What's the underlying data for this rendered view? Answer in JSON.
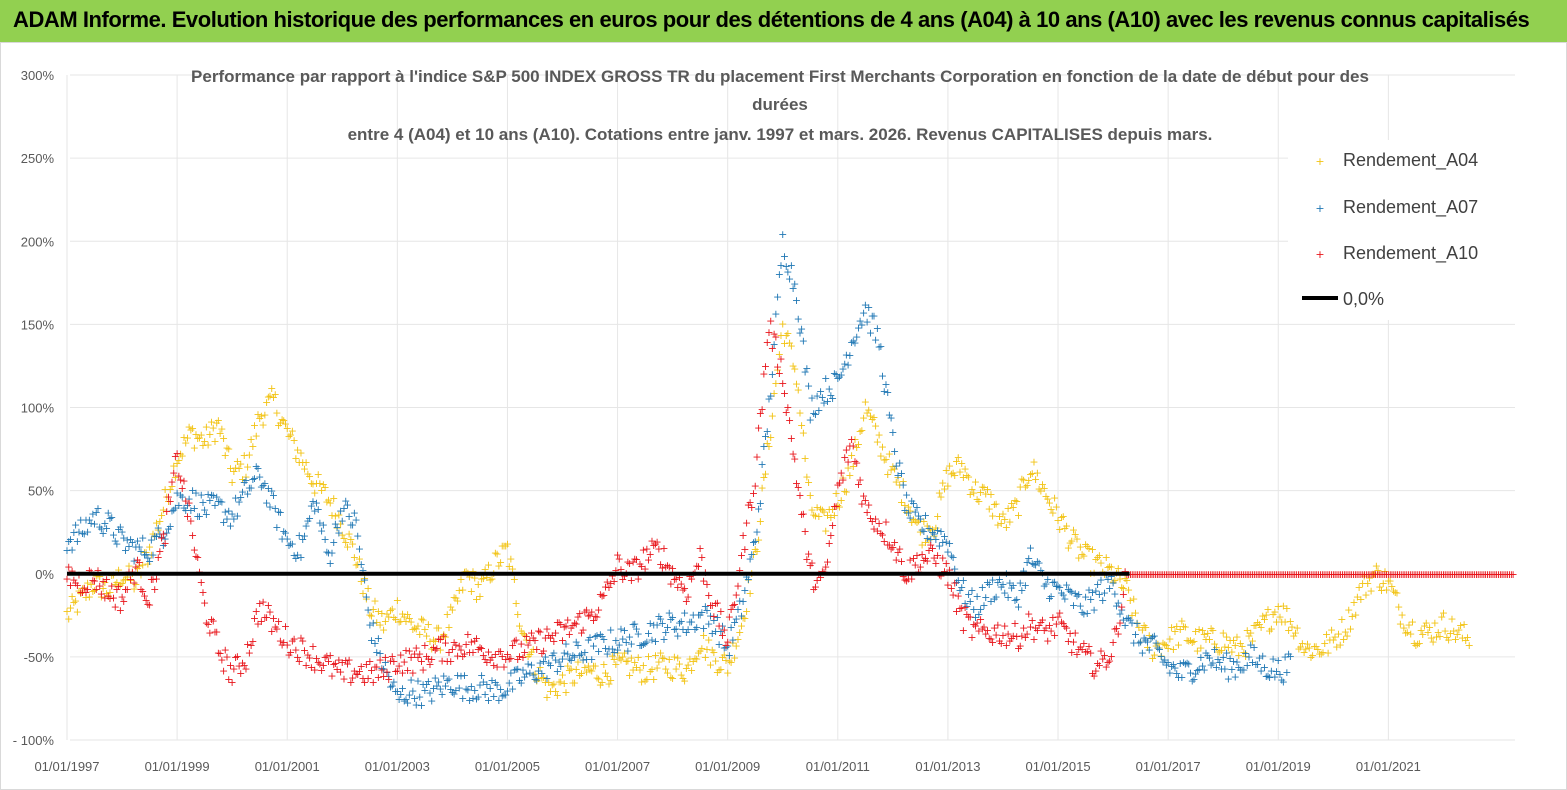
{
  "header": {
    "banner": "ADAM Informe. Evolution historique des performances en euros pour des détentions de 4 ans (A04) à 10 ans (A10) avec les revenus connus capitalisés"
  },
  "colors": {
    "banner_bg": "#92d050",
    "A04": "#f2c314",
    "A07": "#1f77b4",
    "A10": "#e8141a",
    "zero": "#000000"
  },
  "chart_data": {
    "type": "scatter",
    "title_lines": [
      "Performance par rapport à l'indice S&P 500 INDEX GROSS TR  du placement First Merchants Corporation en fonction de la date de début pour des",
      "durées",
      "entre 4 (A04) et 10 ans (A10).  Cotations entre janv. 1997 et mars. 2026. Revenus CAPITALISES depuis mars."
    ],
    "x_range": [
      1997.0,
      2023.3
    ],
    "ylim": [
      -100,
      300
    ],
    "y_ticks": [
      "300%",
      "250%",
      "200%",
      "150%",
      "100%",
      "50%",
      "0%",
      "-50%",
      "- 100%"
    ],
    "y_tick_values": [
      300,
      250,
      200,
      150,
      100,
      50,
      0,
      -50,
      -100
    ],
    "x_tick_labels": [
      "01/01/1997",
      "01/01/1999",
      "01/01/2001",
      "01/01/2003",
      "01/01/2005",
      "01/01/2007",
      "01/01/2009",
      "01/01/2011",
      "01/01/2013",
      "01/01/2015",
      "01/01/2017",
      "01/01/2019",
      "01/01/2021"
    ],
    "x_tick_values": [
      1997,
      1999,
      2001,
      2003,
      2005,
      2007,
      2009,
      2011,
      2013,
      2015,
      2017,
      2019,
      2021
    ],
    "legend": [
      "Rendement_A04",
      "Rendement_A07",
      "Rendement_A10",
      "0,0%"
    ],
    "series": [
      {
        "name": "Rendement_A04",
        "points": [
          [
            1997.0,
            -25
          ],
          [
            1997.25,
            -15
          ],
          [
            1997.5,
            -5
          ],
          [
            1997.75,
            -10
          ],
          [
            1998.0,
            0
          ],
          [
            1998.25,
            -5
          ],
          [
            1998.5,
            15
          ],
          [
            1998.75,
            40
          ],
          [
            1999.0,
            70
          ],
          [
            1999.25,
            85
          ],
          [
            1999.5,
            80
          ],
          [
            1999.75,
            90
          ],
          [
            2000.0,
            60
          ],
          [
            2000.25,
            65
          ],
          [
            2000.5,
            95
          ],
          [
            2000.75,
            105
          ],
          [
            2001.0,
            85
          ],
          [
            2001.25,
            70
          ],
          [
            2001.5,
            55
          ],
          [
            2001.75,
            45
          ],
          [
            2002.0,
            30
          ],
          [
            2002.25,
            10
          ],
          [
            2002.5,
            -20
          ],
          [
            2002.75,
            -30
          ],
          [
            2003.0,
            -20
          ],
          [
            2003.25,
            -30
          ],
          [
            2003.5,
            -35
          ],
          [
            2003.75,
            -40
          ],
          [
            2004.0,
            -25
          ],
          [
            2004.25,
            0
          ],
          [
            2004.5,
            -10
          ],
          [
            2004.75,
            5
          ],
          [
            2005.0,
            15
          ],
          [
            2005.25,
            -30
          ],
          [
            2005.5,
            -55
          ],
          [
            2005.75,
            -70
          ],
          [
            2006.0,
            -65
          ],
          [
            2006.25,
            -60
          ],
          [
            2006.5,
            -58
          ],
          [
            2006.75,
            -60
          ],
          [
            2007.0,
            -55
          ],
          [
            2007.25,
            -55
          ],
          [
            2007.5,
            -58
          ],
          [
            2007.75,
            -55
          ],
          [
            2008.0,
            -55
          ],
          [
            2008.25,
            -58
          ],
          [
            2008.5,
            -40
          ],
          [
            2008.75,
            -50
          ],
          [
            2009.0,
            -55
          ],
          [
            2009.25,
            -30
          ],
          [
            2009.5,
            10
          ],
          [
            2009.75,
            80
          ],
          [
            2010.0,
            150
          ],
          [
            2010.25,
            120
          ],
          [
            2010.5,
            40
          ],
          [
            2010.75,
            30
          ],
          [
            2011.0,
            45
          ],
          [
            2011.25,
            65
          ],
          [
            2011.5,
            100
          ],
          [
            2011.75,
            80
          ],
          [
            2012.0,
            60
          ],
          [
            2012.25,
            45
          ],
          [
            2012.5,
            25
          ],
          [
            2012.75,
            30
          ],
          [
            2013.0,
            60
          ],
          [
            2013.25,
            65
          ],
          [
            2013.5,
            50
          ],
          [
            2013.75,
            45
          ],
          [
            2014.0,
            30
          ],
          [
            2014.25,
            40
          ],
          [
            2014.5,
            65
          ],
          [
            2014.75,
            50
          ],
          [
            2015.0,
            35
          ],
          [
            2015.25,
            20
          ],
          [
            2015.5,
            10
          ],
          [
            2015.75,
            5
          ],
          [
            2016.0,
            0
          ],
          [
            2016.25,
            -10
          ],
          [
            2016.5,
            -35
          ],
          [
            2016.75,
            -45
          ],
          [
            2017.0,
            -40
          ],
          [
            2017.25,
            -35
          ],
          [
            2017.5,
            -40
          ],
          [
            2017.75,
            -40
          ],
          [
            2018.0,
            -40
          ],
          [
            2018.25,
            -45
          ],
          [
            2018.5,
            -40
          ],
          [
            2018.75,
            -30
          ],
          [
            2019.0,
            -20
          ],
          [
            2019.25,
            -30
          ],
          [
            2019.5,
            -45
          ],
          [
            2019.75,
            -45
          ],
          [
            2020.0,
            -40
          ],
          [
            2020.25,
            -30
          ],
          [
            2020.5,
            -10
          ],
          [
            2020.75,
            0
          ],
          [
            2021.0,
            -5
          ],
          [
            2021.25,
            -25
          ],
          [
            2021.5,
            -35
          ],
          [
            2021.75,
            -35
          ],
          [
            2022.0,
            -30
          ],
          [
            2022.25,
            -35
          ],
          [
            2022.5,
            -40
          ]
        ]
      },
      {
        "name": "Rendement_A07",
        "points": [
          [
            1997.0,
            20
          ],
          [
            1997.25,
            25
          ],
          [
            1997.5,
            35
          ],
          [
            1997.75,
            30
          ],
          [
            1998.0,
            20
          ],
          [
            1998.25,
            15
          ],
          [
            1998.5,
            15
          ],
          [
            1998.75,
            25
          ],
          [
            1999.0,
            45
          ],
          [
            1999.25,
            45
          ],
          [
            1999.5,
            40
          ],
          [
            1999.75,
            40
          ],
          [
            2000.0,
            35
          ],
          [
            2000.25,
            50
          ],
          [
            2000.5,
            60
          ],
          [
            2000.75,
            40
          ],
          [
            2001.0,
            20
          ],
          [
            2001.25,
            15
          ],
          [
            2001.5,
            45
          ],
          [
            2001.75,
            10
          ],
          [
            2002.0,
            40
          ],
          [
            2002.25,
            30
          ],
          [
            2002.5,
            -30
          ],
          [
            2002.75,
            -55
          ],
          [
            2003.0,
            -75
          ],
          [
            2003.25,
            -70
          ],
          [
            2003.5,
            -72
          ],
          [
            2003.75,
            -68
          ],
          [
            2004.0,
            -65
          ],
          [
            2004.25,
            -68
          ],
          [
            2004.5,
            -68
          ],
          [
            2004.75,
            -70
          ],
          [
            2005.0,
            -68
          ],
          [
            2005.25,
            -62
          ],
          [
            2005.5,
            -58
          ],
          [
            2005.75,
            -55
          ],
          [
            2006.0,
            -50
          ],
          [
            2006.25,
            -48
          ],
          [
            2006.5,
            -45
          ],
          [
            2006.75,
            -42
          ],
          [
            2007.0,
            -40
          ],
          [
            2007.25,
            -38
          ],
          [
            2007.5,
            -35
          ],
          [
            2007.75,
            -32
          ],
          [
            2008.0,
            -30
          ],
          [
            2008.25,
            -30
          ],
          [
            2008.5,
            -25
          ],
          [
            2008.75,
            -28
          ],
          [
            2009.0,
            -45
          ],
          [
            2009.25,
            -20
          ],
          [
            2009.5,
            20
          ],
          [
            2009.75,
            100
          ],
          [
            2010.0,
            200
          ],
          [
            2010.25,
            170
          ],
          [
            2010.5,
            100
          ],
          [
            2010.75,
            110
          ],
          [
            2011.0,
            115
          ],
          [
            2011.25,
            140
          ],
          [
            2011.5,
            160
          ],
          [
            2011.75,
            140
          ],
          [
            2012.0,
            80
          ],
          [
            2012.25,
            40
          ],
          [
            2012.5,
            30
          ],
          [
            2012.75,
            25
          ],
          [
            2013.0,
            20
          ],
          [
            2013.25,
            -10
          ],
          [
            2013.5,
            -20
          ],
          [
            2013.75,
            -10
          ],
          [
            2014.0,
            -5
          ],
          [
            2014.25,
            -15
          ],
          [
            2014.5,
            10
          ],
          [
            2014.75,
            -5
          ],
          [
            2015.0,
            -10
          ],
          [
            2015.25,
            -15
          ],
          [
            2015.5,
            -20
          ],
          [
            2015.75,
            -10
          ],
          [
            2016.0,
            -5
          ],
          [
            2016.25,
            -30
          ],
          [
            2016.5,
            -40
          ],
          [
            2016.75,
            -45
          ],
          [
            2017.0,
            -55
          ],
          [
            2017.25,
            -60
          ],
          [
            2017.5,
            -55
          ],
          [
            2017.75,
            -50
          ],
          [
            2018.0,
            -55
          ],
          [
            2018.25,
            -55
          ],
          [
            2018.5,
            -50
          ],
          [
            2018.75,
            -55
          ],
          [
            2019.0,
            -58
          ],
          [
            2019.25,
            -55
          ]
        ]
      },
      {
        "name": "Rendement_A10",
        "points": [
          [
            1997.0,
            0
          ],
          [
            1997.25,
            -5
          ],
          [
            1997.5,
            -2
          ],
          [
            1997.75,
            -10
          ],
          [
            1998.0,
            -15
          ],
          [
            1998.25,
            5
          ],
          [
            1998.5,
            -15
          ],
          [
            1998.75,
            20
          ],
          [
            1999.0,
            70
          ],
          [
            1999.25,
            30
          ],
          [
            1999.5,
            -20
          ],
          [
            1999.75,
            -45
          ],
          [
            2000.0,
            -60
          ],
          [
            2000.25,
            -50
          ],
          [
            2000.5,
            -20
          ],
          [
            2000.75,
            -30
          ],
          [
            2001.0,
            -40
          ],
          [
            2001.25,
            -45
          ],
          [
            2001.5,
            -50
          ],
          [
            2001.75,
            -55
          ],
          [
            2002.0,
            -60
          ],
          [
            2002.25,
            -58
          ],
          [
            2002.5,
            -60
          ],
          [
            2002.75,
            -58
          ],
          [
            2003.0,
            -52
          ],
          [
            2003.25,
            -52
          ],
          [
            2003.5,
            -50
          ],
          [
            2003.75,
            -45
          ],
          [
            2004.0,
            -45
          ],
          [
            2004.25,
            -42
          ],
          [
            2004.5,
            -45
          ],
          [
            2004.75,
            -48
          ],
          [
            2005.0,
            -48
          ],
          [
            2005.25,
            -46
          ],
          [
            2005.5,
            -42
          ],
          [
            2005.75,
            -38
          ],
          [
            2006.0,
            -35
          ],
          [
            2006.25,
            -30
          ],
          [
            2006.5,
            -25
          ],
          [
            2006.75,
            -15
          ],
          [
            2007.0,
            5
          ],
          [
            2007.25,
            0
          ],
          [
            2007.5,
            10
          ],
          [
            2007.75,
            15
          ],
          [
            2008.0,
            0
          ],
          [
            2008.25,
            -10
          ],
          [
            2008.5,
            10
          ],
          [
            2008.75,
            -20
          ],
          [
            2009.0,
            -40
          ],
          [
            2009.25,
            10
          ],
          [
            2009.5,
            60
          ],
          [
            2009.75,
            150
          ],
          [
            2010.0,
            120
          ],
          [
            2010.25,
            60
          ],
          [
            2010.5,
            0
          ],
          [
            2010.75,
            -5
          ],
          [
            2011.0,
            50
          ],
          [
            2011.25,
            80
          ],
          [
            2011.5,
            40
          ],
          [
            2011.75,
            30
          ],
          [
            2012.0,
            20
          ],
          [
            2012.25,
            0
          ],
          [
            2012.5,
            10
          ],
          [
            2012.75,
            10
          ],
          [
            2013.0,
            0
          ],
          [
            2013.25,
            -25
          ],
          [
            2013.5,
            -35
          ],
          [
            2013.75,
            -35
          ],
          [
            2014.0,
            -35
          ],
          [
            2014.25,
            -38
          ],
          [
            2014.5,
            -30
          ],
          [
            2014.75,
            -35
          ],
          [
            2015.0,
            -30
          ],
          [
            2015.25,
            -40
          ],
          [
            2015.5,
            -50
          ],
          [
            2015.75,
            -55
          ],
          [
            2016.0,
            -45
          ],
          [
            2016.25,
            0
          ],
          [
            2017.0,
            0
          ],
          [
            2018.0,
            0
          ],
          [
            2019.0,
            0
          ],
          [
            2020.0,
            0
          ],
          [
            2021.0,
            0
          ],
          [
            2022.0,
            0
          ],
          [
            2023.0,
            0
          ],
          [
            2023.3,
            0
          ]
        ]
      }
    ]
  }
}
